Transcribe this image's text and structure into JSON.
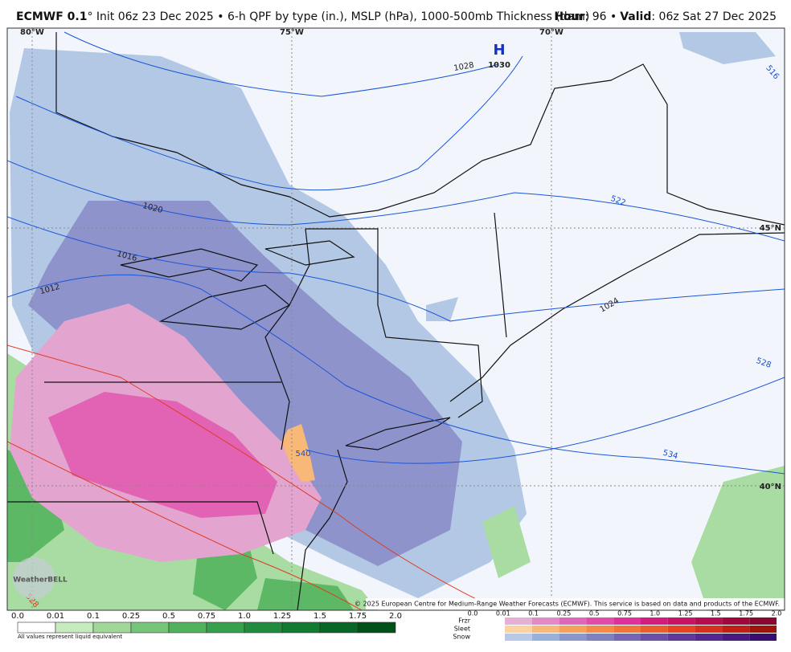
{
  "header": {
    "title_bold": "ECMWF 0.1",
    "title_rest": "° Init 06z 23 Dec 2025 • 6-h QPF by type (in.), MSLP (hPa), 1000-500mb Thickness (dam)",
    "hour_label": "Hour",
    "hour_value": ": 96 •",
    "valid_label": "Valid",
    "valid_value": ": 06z Sat 27 Dec 2025"
  },
  "map": {
    "lon_labels": [
      "80°W",
      "75°W",
      "70°W"
    ],
    "lat_labels": [
      "45°N",
      "40°N"
    ],
    "high": {
      "letter": "H",
      "value": "1030"
    },
    "isobar_labels": [
      "1028",
      "1020",
      "1016",
      "1012",
      "1024"
    ],
    "thickness_labels": [
      "516",
      "522",
      "528",
      "534",
      "540",
      "528"
    ],
    "logo": "WeatherBELL",
    "copyright": "© 2025 European Centre for Medium-Range Weather Forecasts (ECMWF). This service is based on data and products of the ECMWF."
  },
  "legend": {
    "rain_ticks": [
      "0.0",
      "0.01",
      "0.1",
      "0.25",
      "0.5",
      "0.75",
      "1.0",
      "1.25",
      "1.5",
      "1.75",
      "2.0"
    ],
    "note": "All values represent liquid equivalent",
    "type_labels": [
      "Frzr",
      "Sleet",
      "Snow"
    ],
    "type_ticks": [
      "0.0",
      "0.01",
      "0.1",
      "0.25",
      "0.5",
      "0.75",
      "1.0",
      "1.25",
      "1.5",
      "1.75",
      "2.0"
    ]
  }
}
